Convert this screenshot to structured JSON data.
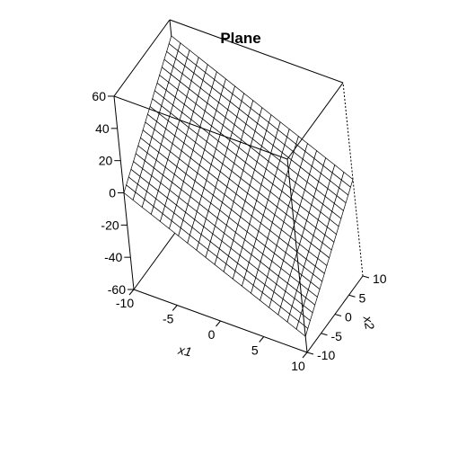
{
  "chart_data": {
    "type": "surface",
    "title": "Plane",
    "xlabel": "x1",
    "ylabel": "x2",
    "zlabel": "",
    "xlim": [
      -10,
      10
    ],
    "ylim": [
      -10,
      10
    ],
    "zlim": [
      -60,
      60
    ],
    "x_ticks": [
      "-10",
      "-5",
      "0",
      "5",
      "10"
    ],
    "y_ticks": [
      "-10",
      "-5",
      "0",
      "5",
      "10"
    ],
    "z_ticks": [
      "-60",
      "-40",
      "-20",
      "0",
      "20",
      "40",
      "60"
    ],
    "grid_n": 20,
    "plane": {
      "intercept": 0,
      "coef_x1": -2.5,
      "coef_x2": 2.5
    }
  }
}
